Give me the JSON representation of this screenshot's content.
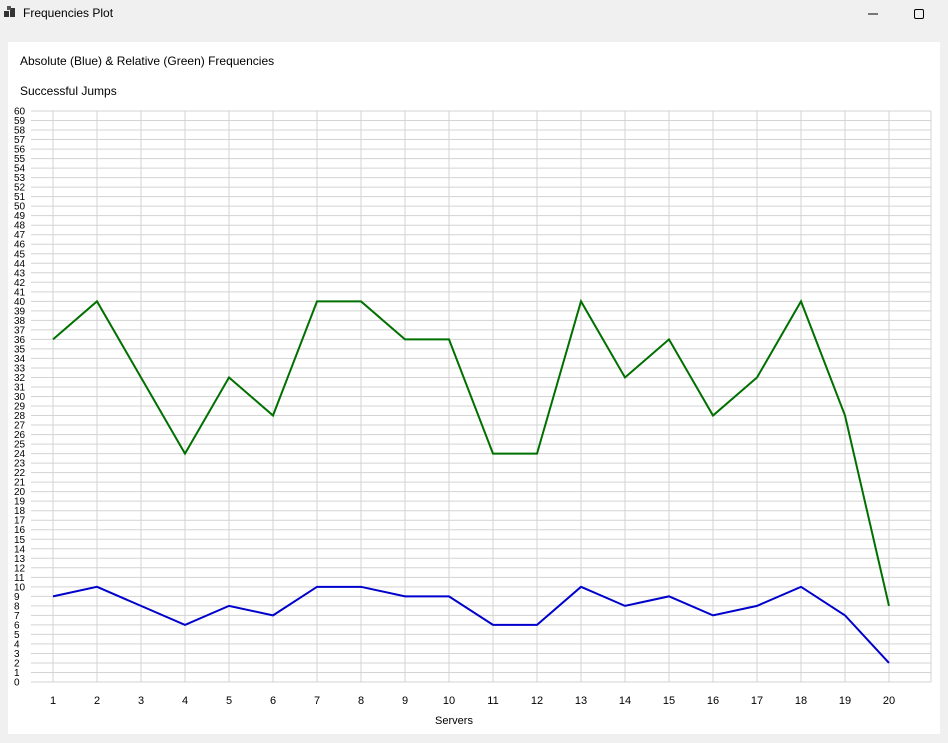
{
  "window": {
    "title": "Frequencies Plot"
  },
  "chart_data": {
    "type": "line",
    "title": "Absolute (Blue) & Relative (Green) Frequencies",
    "ylabel": "Successful Jumps",
    "xlabel": "Servers",
    "categories": [
      "1",
      "2",
      "3",
      "4",
      "5",
      "6",
      "7",
      "8",
      "9",
      "10",
      "11",
      "12",
      "13",
      "14",
      "15",
      "16",
      "17",
      "18",
      "19",
      "20"
    ],
    "ylim": [
      0,
      60
    ],
    "yticks_step": 1,
    "grid": true,
    "series": [
      {
        "color": "#0000cc",
        "values": [
          9,
          10,
          8,
          6,
          8,
          7,
          10,
          10,
          9,
          9,
          6,
          6,
          10,
          8,
          9,
          7,
          8,
          10,
          7,
          2
        ]
      },
      {
        "color": "#007000",
        "values": [
          36,
          40,
          32,
          24,
          32,
          28,
          40,
          40,
          36,
          36,
          24,
          24,
          40,
          32,
          36,
          28,
          32,
          40,
          28,
          8
        ]
      }
    ]
  }
}
